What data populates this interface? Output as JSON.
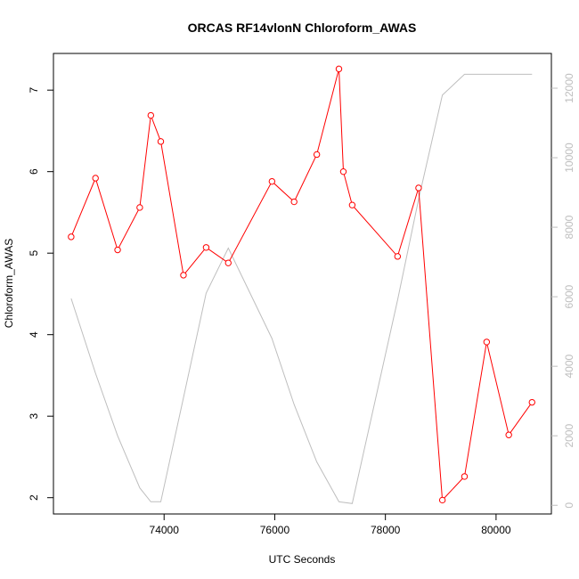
{
  "chart_data": {
    "type": "line",
    "title": "ORCAS RF14vlonN Chloroform_AWAS",
    "xlabel": "UTC Seconds",
    "ylabel": "Chloroform_AWAS",
    "xlim": [
      72000,
      81000
    ],
    "ylim": [
      1.8,
      7.45
    ],
    "y2lim": [
      -250,
      13000
    ],
    "x_ticks": [
      74000,
      76000,
      78000,
      80000
    ],
    "y_ticks": [
      2,
      3,
      4,
      5,
      6,
      7
    ],
    "y2_ticks": [
      0,
      2000,
      4000,
      6000,
      8000,
      10000,
      12000
    ],
    "grid": false,
    "colors": {
      "primary": "#ff0000",
      "secondary": "#bebebe"
    },
    "series": [
      {
        "color": "#ff0000",
        "axis": "left",
        "markers": "open-circle",
        "x": [
          72320,
          72760,
          73160,
          73560,
          73760,
          73940,
          74350,
          74760,
          75160,
          75950,
          76350,
          76760,
          77160,
          77240,
          77400,
          78220,
          78600,
          79030,
          79430,
          79830,
          80230,
          80650
        ],
        "y": [
          5.2,
          5.92,
          5.04,
          5.56,
          6.69,
          6.37,
          4.73,
          5.07,
          4.88,
          5.88,
          5.63,
          6.21,
          7.26,
          6.0,
          5.59,
          4.96,
          5.8,
          1.97,
          2.26,
          3.91,
          2.77,
          3.17
        ]
      },
      {
        "color": "#bebebe",
        "axis": "right",
        "markers": "none",
        "x": [
          72320,
          72760,
          73160,
          73560,
          73760,
          73940,
          74350,
          74760,
          75160,
          75950,
          76350,
          76760,
          77160,
          77400,
          78220,
          78600,
          79030,
          79430,
          79830,
          80230,
          80650
        ],
        "y": [
          5950,
          3800,
          2000,
          500,
          100,
          100,
          3100,
          6100,
          7400,
          4800,
          2900,
          1250,
          100,
          50,
          5900,
          8800,
          11800,
          12400,
          12400,
          12400,
          12400
        ]
      }
    ]
  }
}
